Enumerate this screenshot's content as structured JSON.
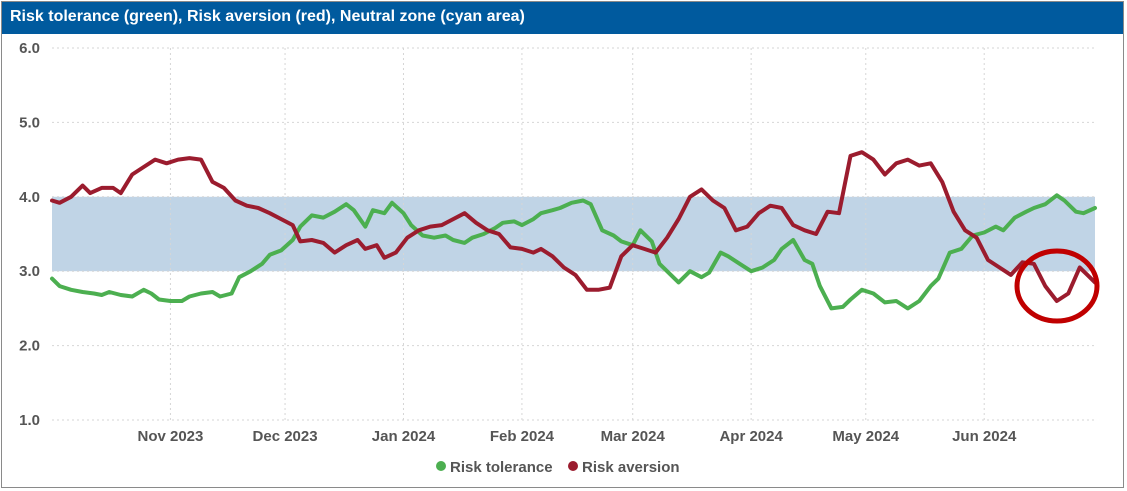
{
  "chart_data": {
    "type": "line",
    "title": "Risk tolerance (green), Risk aversion (red), Neutral zone (cyan area)",
    "ylim": [
      1.0,
      6.0
    ],
    "yticks": [
      "1.0",
      "2.0",
      "3.0",
      "4.0",
      "5.0",
      "6.0"
    ],
    "xticks": [
      {
        "label": "Nov 2023",
        "date": "2023-11-01"
      },
      {
        "label": "Dec 2023",
        "date": "2023-12-01"
      },
      {
        "label": "Jan 2024",
        "date": "2024-01-01"
      },
      {
        "label": "Feb 2024",
        "date": "2024-02-01"
      },
      {
        "label": "Mar 2024",
        "date": "2024-03-01"
      },
      {
        "label": "Apr 2024",
        "date": "2024-04-01"
      },
      {
        "label": "May 2024",
        "date": "2024-05-01"
      },
      {
        "label": "Jun 2024",
        "date": "2024-06-01"
      }
    ],
    "xrange": [
      "2023-10-01",
      "2024-06-30"
    ],
    "neutral_zone": [
      3.0,
      4.0
    ],
    "grid": true,
    "legend_position": "bottom-center",
    "series": [
      {
        "name": "Risk tolerance",
        "color": "#4caf50",
        "points": [
          [
            "2023-10-01",
            2.9
          ],
          [
            "2023-10-03",
            2.8
          ],
          [
            "2023-10-06",
            2.75
          ],
          [
            "2023-10-09",
            2.72
          ],
          [
            "2023-10-12",
            2.7
          ],
          [
            "2023-10-14",
            2.68
          ],
          [
            "2023-10-16",
            2.72
          ],
          [
            "2023-10-19",
            2.68
          ],
          [
            "2023-10-22",
            2.66
          ],
          [
            "2023-10-25",
            2.75
          ],
          [
            "2023-10-27",
            2.7
          ],
          [
            "2023-10-29",
            2.62
          ],
          [
            "2023-11-01",
            2.6
          ],
          [
            "2023-11-04",
            2.6
          ],
          [
            "2023-11-06",
            2.66
          ],
          [
            "2023-11-09",
            2.7
          ],
          [
            "2023-11-12",
            2.72
          ],
          [
            "2023-11-14",
            2.66
          ],
          [
            "2023-11-17",
            2.7
          ],
          [
            "2023-11-19",
            2.92
          ],
          [
            "2023-11-22",
            3.0
          ],
          [
            "2023-11-25",
            3.1
          ],
          [
            "2023-11-27",
            3.22
          ],
          [
            "2023-11-30",
            3.28
          ],
          [
            "2023-12-03",
            3.42
          ],
          [
            "2023-12-05",
            3.6
          ],
          [
            "2023-12-08",
            3.75
          ],
          [
            "2023-12-11",
            3.72
          ],
          [
            "2023-12-14",
            3.8
          ],
          [
            "2023-12-17",
            3.9
          ],
          [
            "2023-12-19",
            3.82
          ],
          [
            "2023-12-22",
            3.6
          ],
          [
            "2023-12-24",
            3.82
          ],
          [
            "2023-12-27",
            3.78
          ],
          [
            "2023-12-29",
            3.92
          ],
          [
            "2024-01-01",
            3.78
          ],
          [
            "2024-01-03",
            3.62
          ],
          [
            "2024-01-06",
            3.48
          ],
          [
            "2024-01-09",
            3.45
          ],
          [
            "2024-01-12",
            3.48
          ],
          [
            "2024-01-14",
            3.42
          ],
          [
            "2024-01-17",
            3.38
          ],
          [
            "2024-01-19",
            3.45
          ],
          [
            "2024-01-22",
            3.5
          ],
          [
            "2024-01-25",
            3.58
          ],
          [
            "2024-01-27",
            3.65
          ],
          [
            "2024-01-30",
            3.67
          ],
          [
            "2024-02-01",
            3.62
          ],
          [
            "2024-02-04",
            3.7
          ],
          [
            "2024-02-06",
            3.78
          ],
          [
            "2024-02-09",
            3.82
          ],
          [
            "2024-02-11",
            3.85
          ],
          [
            "2024-02-14",
            3.92
          ],
          [
            "2024-02-17",
            3.95
          ],
          [
            "2024-02-19",
            3.9
          ],
          [
            "2024-02-22",
            3.55
          ],
          [
            "2024-02-25",
            3.48
          ],
          [
            "2024-02-27",
            3.4
          ],
          [
            "2024-03-01",
            3.35
          ],
          [
            "2024-03-03",
            3.55
          ],
          [
            "2024-03-06",
            3.4
          ],
          [
            "2024-03-08",
            3.1
          ],
          [
            "2024-03-11",
            2.95
          ],
          [
            "2024-03-13",
            2.85
          ],
          [
            "2024-03-16",
            3.0
          ],
          [
            "2024-03-19",
            2.92
          ],
          [
            "2024-03-21",
            2.98
          ],
          [
            "2024-03-24",
            3.25
          ],
          [
            "2024-03-26",
            3.2
          ],
          [
            "2024-03-29",
            3.1
          ],
          [
            "2024-04-01",
            3.0
          ],
          [
            "2024-04-04",
            3.05
          ],
          [
            "2024-04-07",
            3.15
          ],
          [
            "2024-04-09",
            3.3
          ],
          [
            "2024-04-12",
            3.42
          ],
          [
            "2024-04-15",
            3.15
          ],
          [
            "2024-04-17",
            3.1
          ],
          [
            "2024-04-19",
            2.8
          ],
          [
            "2024-04-22",
            2.5
          ],
          [
            "2024-04-25",
            2.52
          ],
          [
            "2024-04-27",
            2.62
          ],
          [
            "2024-04-30",
            2.75
          ],
          [
            "2024-05-03",
            2.7
          ],
          [
            "2024-05-06",
            2.58
          ],
          [
            "2024-05-09",
            2.6
          ],
          [
            "2024-05-12",
            2.5
          ],
          [
            "2024-05-15",
            2.6
          ],
          [
            "2024-05-18",
            2.8
          ],
          [
            "2024-05-20",
            2.9
          ],
          [
            "2024-05-23",
            3.25
          ],
          [
            "2024-05-26",
            3.3
          ],
          [
            "2024-05-29",
            3.48
          ],
          [
            "2024-06-01",
            3.52
          ],
          [
            "2024-06-04",
            3.6
          ],
          [
            "2024-06-06",
            3.55
          ],
          [
            "2024-06-09",
            3.72
          ],
          [
            "2024-06-12",
            3.8
          ],
          [
            "2024-06-14",
            3.85
          ],
          [
            "2024-06-17",
            3.9
          ],
          [
            "2024-06-20",
            4.02
          ],
          [
            "2024-06-22",
            3.95
          ],
          [
            "2024-06-25",
            3.8
          ],
          [
            "2024-06-27",
            3.78
          ],
          [
            "2024-06-30",
            3.85
          ]
        ]
      },
      {
        "name": "Risk aversion",
        "color": "#9b1c2e",
        "points": [
          [
            "2023-10-01",
            3.95
          ],
          [
            "2023-10-03",
            3.92
          ],
          [
            "2023-10-06",
            4.0
          ],
          [
            "2023-10-09",
            4.15
          ],
          [
            "2023-10-11",
            4.05
          ],
          [
            "2023-10-14",
            4.12
          ],
          [
            "2023-10-17",
            4.12
          ],
          [
            "2023-10-19",
            4.05
          ],
          [
            "2023-10-22",
            4.3
          ],
          [
            "2023-10-25",
            4.4
          ],
          [
            "2023-10-28",
            4.5
          ],
          [
            "2023-10-31",
            4.45
          ],
          [
            "2023-11-03",
            4.5
          ],
          [
            "2023-11-06",
            4.52
          ],
          [
            "2023-11-09",
            4.5
          ],
          [
            "2023-11-12",
            4.2
          ],
          [
            "2023-11-15",
            4.12
          ],
          [
            "2023-11-18",
            3.95
          ],
          [
            "2023-11-21",
            3.88
          ],
          [
            "2023-11-24",
            3.85
          ],
          [
            "2023-11-27",
            3.78
          ],
          [
            "2023-11-30",
            3.7
          ],
          [
            "2023-12-03",
            3.62
          ],
          [
            "2023-12-05",
            3.4
          ],
          [
            "2023-12-08",
            3.42
          ],
          [
            "2023-12-11",
            3.38
          ],
          [
            "2023-12-14",
            3.25
          ],
          [
            "2023-12-17",
            3.35
          ],
          [
            "2023-12-20",
            3.42
          ],
          [
            "2023-12-22",
            3.3
          ],
          [
            "2023-12-25",
            3.35
          ],
          [
            "2023-12-27",
            3.18
          ],
          [
            "2023-12-30",
            3.25
          ],
          [
            "2024-01-02",
            3.45
          ],
          [
            "2024-01-05",
            3.55
          ],
          [
            "2024-01-08",
            3.6
          ],
          [
            "2024-01-11",
            3.62
          ],
          [
            "2024-01-14",
            3.7
          ],
          [
            "2024-01-17",
            3.78
          ],
          [
            "2024-01-20",
            3.65
          ],
          [
            "2024-01-23",
            3.55
          ],
          [
            "2024-01-26",
            3.5
          ],
          [
            "2024-01-29",
            3.32
          ],
          [
            "2024-02-01",
            3.3
          ],
          [
            "2024-02-04",
            3.25
          ],
          [
            "2024-02-06",
            3.3
          ],
          [
            "2024-02-09",
            3.2
          ],
          [
            "2024-02-12",
            3.05
          ],
          [
            "2024-02-15",
            2.95
          ],
          [
            "2024-02-18",
            2.75
          ],
          [
            "2024-02-21",
            2.75
          ],
          [
            "2024-02-24",
            2.78
          ],
          [
            "2024-02-27",
            3.2
          ],
          [
            "2024-03-01",
            3.35
          ],
          [
            "2024-03-04",
            3.3
          ],
          [
            "2024-03-07",
            3.25
          ],
          [
            "2024-03-10",
            3.45
          ],
          [
            "2024-03-13",
            3.7
          ],
          [
            "2024-03-16",
            4.0
          ],
          [
            "2024-03-19",
            4.1
          ],
          [
            "2024-03-22",
            3.95
          ],
          [
            "2024-03-25",
            3.85
          ],
          [
            "2024-03-28",
            3.55
          ],
          [
            "2024-03-31",
            3.6
          ],
          [
            "2024-04-03",
            3.78
          ],
          [
            "2024-04-06",
            3.88
          ],
          [
            "2024-04-09",
            3.85
          ],
          [
            "2024-04-12",
            3.62
          ],
          [
            "2024-04-15",
            3.55
          ],
          [
            "2024-04-18",
            3.5
          ],
          [
            "2024-04-21",
            3.8
          ],
          [
            "2024-04-24",
            3.78
          ],
          [
            "2024-04-27",
            4.55
          ],
          [
            "2024-04-30",
            4.6
          ],
          [
            "2024-05-03",
            4.5
          ],
          [
            "2024-05-06",
            4.3
          ],
          [
            "2024-05-09",
            4.45
          ],
          [
            "2024-05-12",
            4.5
          ],
          [
            "2024-05-15",
            4.42
          ],
          [
            "2024-05-18",
            4.45
          ],
          [
            "2024-05-21",
            4.2
          ],
          [
            "2024-05-24",
            3.8
          ],
          [
            "2024-05-27",
            3.55
          ],
          [
            "2024-05-30",
            3.45
          ],
          [
            "2024-06-02",
            3.15
          ],
          [
            "2024-06-05",
            3.05
          ],
          [
            "2024-06-08",
            2.95
          ],
          [
            "2024-06-11",
            3.12
          ],
          [
            "2024-06-14",
            3.1
          ],
          [
            "2024-06-17",
            2.8
          ],
          [
            "2024-06-20",
            2.6
          ],
          [
            "2024-06-23",
            2.7
          ],
          [
            "2024-06-26",
            3.05
          ],
          [
            "2024-06-28",
            2.95
          ],
          [
            "2024-06-30",
            2.85
          ]
        ]
      }
    ]
  },
  "colors": {
    "header": "#005a9e",
    "neutral_zone": "#c0d4e6",
    "highlight_circle": "#c00000"
  },
  "legend": {
    "tolerance": "Risk tolerance",
    "aversion": "Risk aversion"
  }
}
